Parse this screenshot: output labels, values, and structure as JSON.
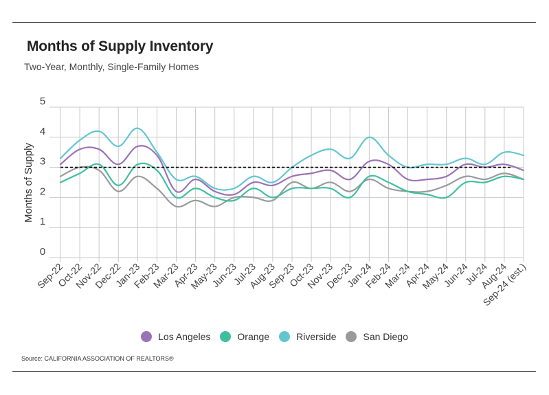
{
  "header": {
    "title": "Months of Supply Inventory",
    "subtitle": "Two-Year, Monthly, Single-Family Homes"
  },
  "footer": {
    "source": "Source:  CALIFORNIA ASSOCIATION OF REALTORS®"
  },
  "chart_data": {
    "type": "line",
    "title": "Months of Supply Inventory",
    "subtitle": "Two-Year, Monthly, Single-Family Homes",
    "xlabel": "",
    "ylabel": "Months of Supply",
    "ylim": [
      0,
      5
    ],
    "yticks": [
      0,
      1,
      2,
      3,
      4,
      5
    ],
    "grid": true,
    "legend_position": "bottom",
    "reference_line": {
      "value": 3,
      "style": "dashed",
      "color": "#000000"
    },
    "categories": [
      "Sep-22",
      "Oct-22",
      "Nov-22",
      "Dec-22",
      "Jan-23",
      "Feb-23",
      "Mar-23",
      "Apr-23",
      "May-23",
      "Jun-23",
      "Jul-23",
      "Aug-23",
      "Sep-23",
      "Oct-23",
      "Nov-23",
      "Dec-23",
      "Jan-24",
      "Feb-24",
      "Mar-24",
      "Apr-24",
      "May-24",
      "Jun-24",
      "Jul-24",
      "Aug-24",
      "Sep-24 (est.)"
    ],
    "series": [
      {
        "name": "Los Angeles",
        "color": "#9b72b5",
        "values": [
          3.1,
          3.6,
          3.6,
          3.1,
          3.7,
          3.4,
          2.2,
          2.6,
          2.2,
          2.1,
          2.5,
          2.4,
          2.7,
          2.8,
          2.9,
          2.6,
          3.2,
          3.1,
          2.6,
          2.6,
          2.7,
          3.1,
          3.0,
          3.1,
          2.9
        ]
      },
      {
        "name": "Orange",
        "color": "#3fbfa0",
        "values": [
          2.5,
          2.8,
          3.1,
          2.4,
          3.1,
          2.9,
          2.0,
          2.3,
          2.0,
          1.9,
          2.3,
          2.0,
          2.3,
          2.3,
          2.3,
          2.0,
          2.7,
          2.5,
          2.2,
          2.1,
          2.0,
          2.5,
          2.5,
          2.7,
          2.6
        ]
      },
      {
        "name": "Riverside",
        "color": "#62c6d1",
        "values": [
          3.3,
          3.9,
          4.2,
          3.7,
          4.3,
          3.5,
          2.6,
          2.7,
          2.3,
          2.3,
          2.7,
          2.5,
          3.0,
          3.4,
          3.6,
          3.3,
          4.0,
          3.4,
          3.0,
          3.1,
          3.1,
          3.3,
          3.1,
          3.5,
          3.4
        ]
      },
      {
        "name": "San Diego",
        "color": "#9a9a9a",
        "values": [
          2.7,
          3.0,
          2.9,
          2.2,
          2.7,
          2.3,
          1.7,
          1.9,
          1.7,
          2.0,
          2.0,
          1.9,
          2.5,
          2.3,
          2.5,
          2.2,
          2.6,
          2.3,
          2.2,
          2.2,
          2.4,
          2.7,
          2.6,
          2.8,
          2.6
        ]
      }
    ]
  }
}
